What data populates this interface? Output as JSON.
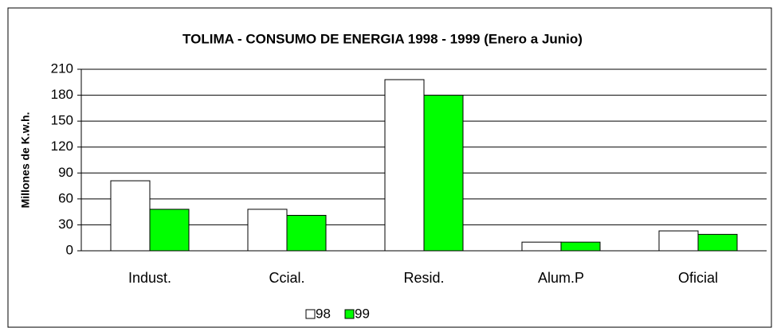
{
  "chart_data": {
    "type": "bar",
    "title": "TOLIMA - CONSUMO DE ENERGIA  1998 - 1999 (Enero a Junio)",
    "y_label": "Millones de K.w.h.",
    "categories": [
      "Indust.",
      "Ccial.",
      "Resid.",
      "Alum.P",
      "Oficial"
    ],
    "series": [
      {
        "name": "98",
        "color": "#ffffff",
        "values": [
          81,
          48,
          198,
          10,
          23
        ]
      },
      {
        "name": "99",
        "color": "#00ff00",
        "values": [
          48,
          41,
          180,
          10,
          19
        ]
      }
    ],
    "ylim": [
      0,
      210
    ],
    "yticks": [
      0,
      30,
      60,
      90,
      120,
      150,
      180,
      210
    ],
    "grid": true,
    "legend": "bottom"
  }
}
